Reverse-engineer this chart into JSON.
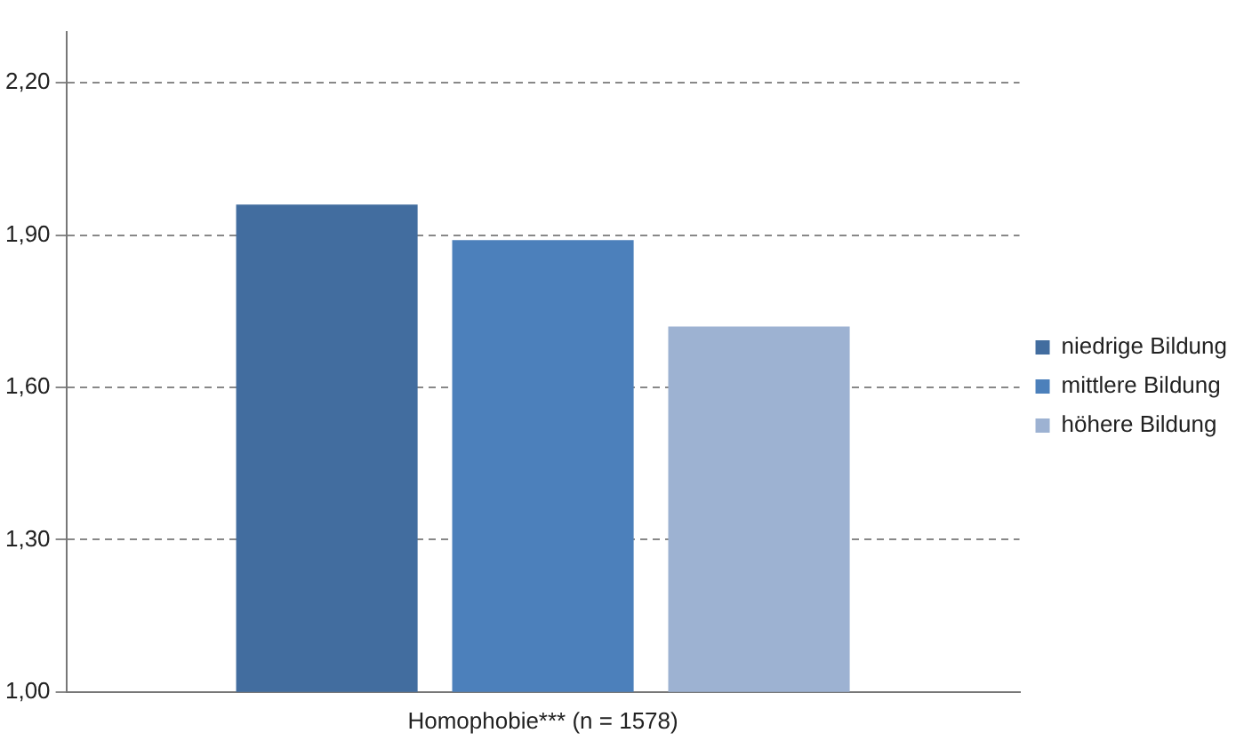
{
  "chart_data": {
    "type": "bar",
    "categories": [
      "Homophobie*** (n = 1578)"
    ],
    "series": [
      {
        "name": "niedrige Bildung",
        "color": "#426d9f",
        "values": [
          1.96
        ]
      },
      {
        "name": "mittlere Bildung",
        "color": "#4c80bb",
        "values": [
          1.89
        ]
      },
      {
        "name": "höhere Bildung",
        "color": "#9db2d2",
        "values": [
          1.72
        ]
      }
    ],
    "ylim": [
      1,
      2.3
    ],
    "yticks": [
      {
        "value": 1,
        "label": "1,00"
      },
      {
        "value": 1.3,
        "label": "1,30"
      },
      {
        "value": 1.6,
        "label": "1,60"
      },
      {
        "value": 1.9,
        "label": "1,90"
      },
      {
        "value": 2.2,
        "label": "2,20"
      }
    ],
    "grid": "y",
    "legend": "right"
  }
}
